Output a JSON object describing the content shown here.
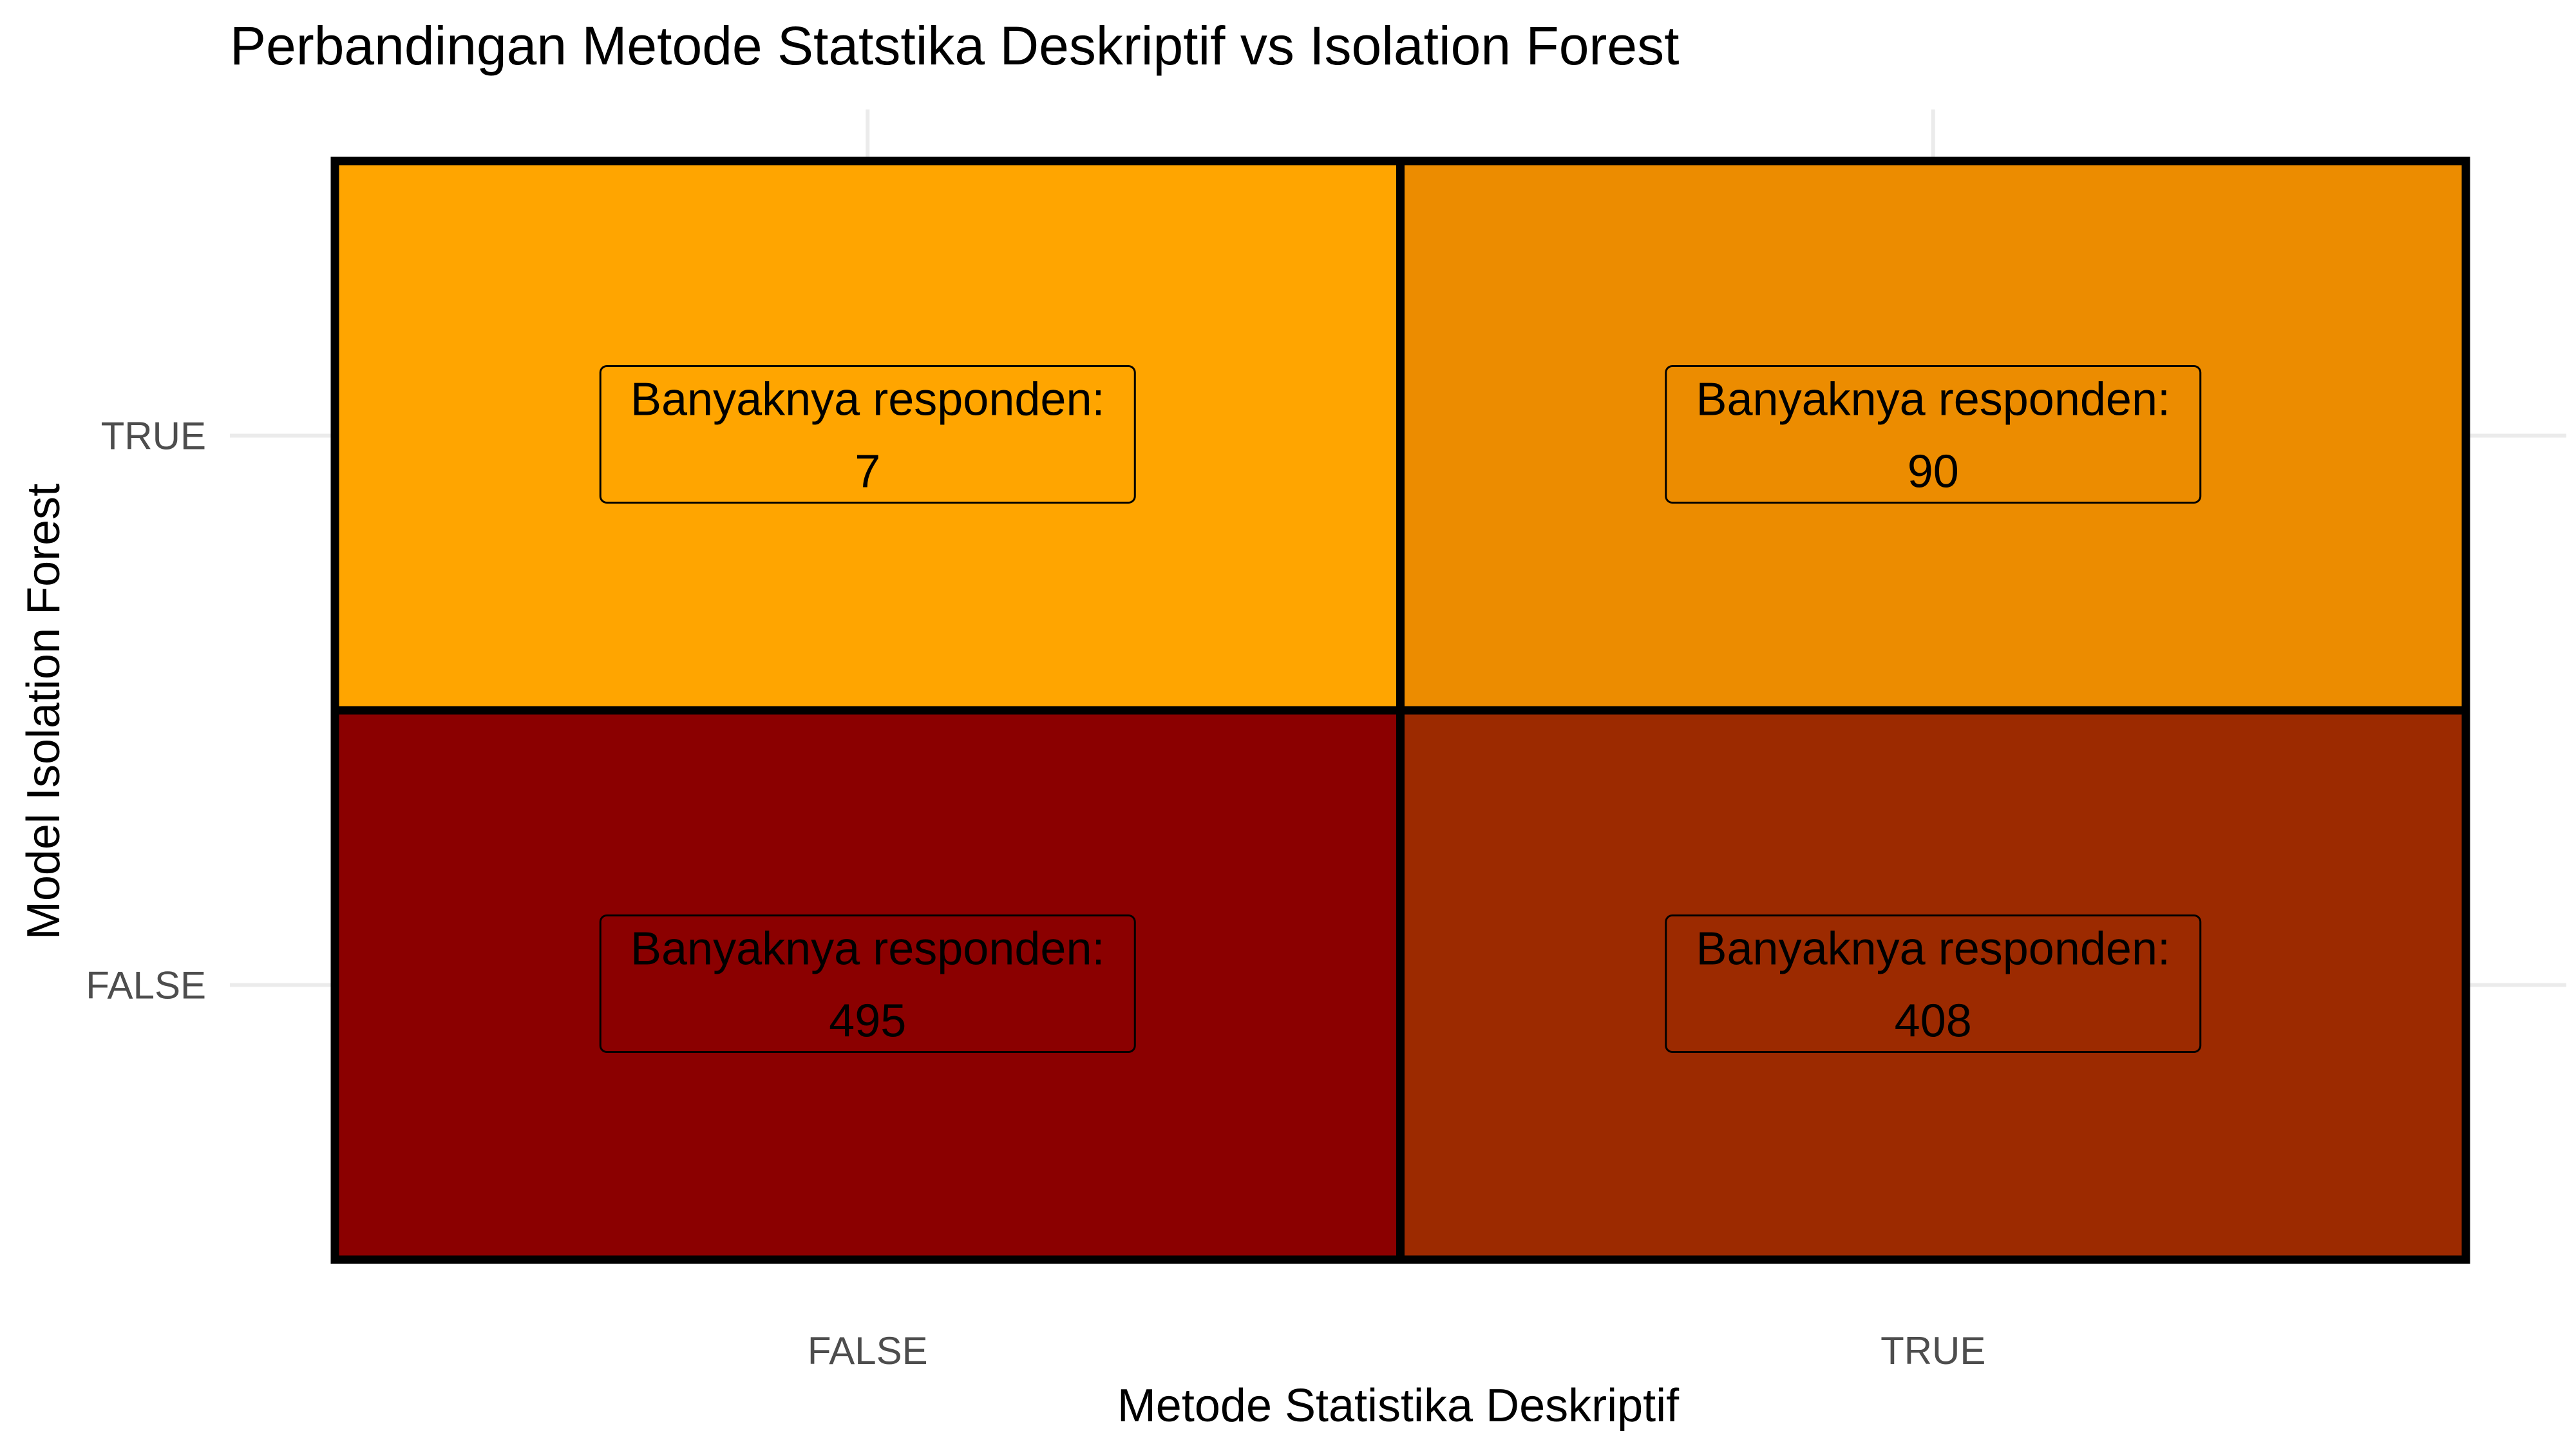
{
  "chart_data": {
    "type": "heatmap",
    "title": "Perbandingan Metode Statstika Deskriptif vs Isolation Forest",
    "xlabel": "Metode Statistika Deskriptif",
    "ylabel": "Model Isolation Forest",
    "x_categories": [
      "FALSE",
      "TRUE"
    ],
    "y_categories": [
      "FALSE",
      "TRUE"
    ],
    "label_prefix": "Banyaknya responden:",
    "grid": true,
    "legend": "none",
    "cells": [
      {
        "x": "FALSE",
        "y": "TRUE",
        "value": 7,
        "label_line1": "Banyaknya responden:",
        "label_line2": "7",
        "color": "#ffa500"
      },
      {
        "x": "TRUE",
        "y": "TRUE",
        "value": 90,
        "label_line1": "Banyaknya responden:",
        "label_line2": "90",
        "color": "#ec8c00"
      },
      {
        "x": "FALSE",
        "y": "FALSE",
        "value": 495,
        "label_line1": "Banyaknya responden:",
        "label_line2": "495",
        "color": "#8b0000"
      },
      {
        "x": "TRUE",
        "y": "FALSE",
        "value": 408,
        "label_line1": "Banyaknya responden:",
        "label_line2": "408",
        "color": "#9c2a00"
      }
    ]
  }
}
